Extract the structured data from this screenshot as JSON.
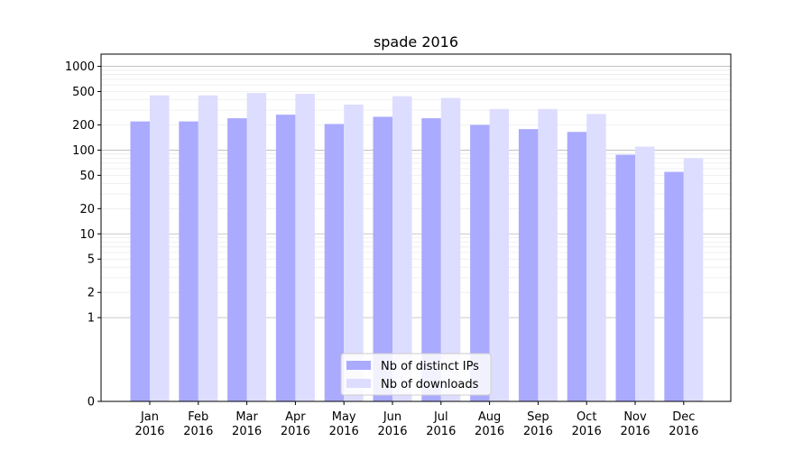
{
  "chart_data": {
    "type": "bar",
    "title": "spade 2016",
    "xlabel": "",
    "ylabel": "",
    "yscale": "symlog",
    "ylim": [
      0,
      1400
    ],
    "grid": true,
    "legend_placement": "bottom-center",
    "categories": [
      [
        "Jan",
        "2016"
      ],
      [
        "Feb",
        "2016"
      ],
      [
        "Mar",
        "2016"
      ],
      [
        "Apr",
        "2016"
      ],
      [
        "May",
        "2016"
      ],
      [
        "Jun",
        "2016"
      ],
      [
        "Jul",
        "2016"
      ],
      [
        "Aug",
        "2016"
      ],
      [
        "Sep",
        "2016"
      ],
      [
        "Oct",
        "2016"
      ],
      [
        "Nov",
        "2016"
      ],
      [
        "Dec",
        "2016"
      ]
    ],
    "yticks": [
      {
        "value": 0,
        "label": "0"
      },
      {
        "value": 1,
        "label": "1"
      },
      {
        "value": 2,
        "label": "2"
      },
      {
        "value": 5,
        "label": "5"
      },
      {
        "value": 10,
        "label": "10"
      },
      {
        "value": 20,
        "label": "20"
      },
      {
        "value": 50,
        "label": "50"
      },
      {
        "value": 100,
        "label": "100"
      },
      {
        "value": 200,
        "label": "200"
      },
      {
        "value": 500,
        "label": "500"
      },
      {
        "value": 1000,
        "label": "1000"
      }
    ],
    "series": [
      {
        "name": "Nb of distinct IPs",
        "color": "#aaaaff",
        "values": [
          220,
          220,
          240,
          265,
          205,
          250,
          240,
          200,
          178,
          165,
          88,
          55
        ]
      },
      {
        "name": "Nb of downloads",
        "color": "#ddddff",
        "values": [
          450,
          450,
          480,
          470,
          350,
          440,
          420,
          310,
          310,
          270,
          110,
          80
        ]
      }
    ]
  }
}
